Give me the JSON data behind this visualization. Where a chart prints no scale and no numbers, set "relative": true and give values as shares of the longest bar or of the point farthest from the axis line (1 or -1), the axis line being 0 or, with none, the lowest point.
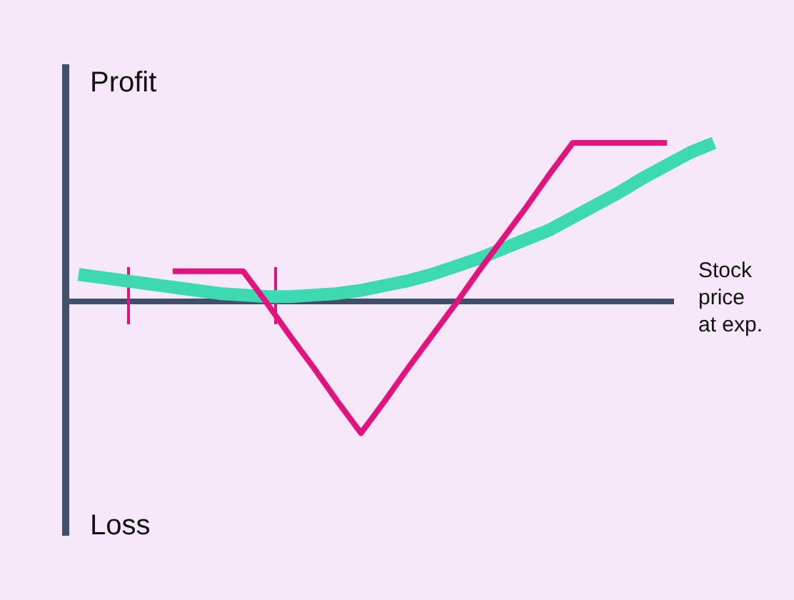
{
  "chart_data": {
    "type": "line",
    "relative": true,
    "xlabel": "Stock price at exp.",
    "annotations": [
      "Profit",
      "Loss"
    ],
    "categories": [
      null,
      null,
      null,
      null,
      null,
      null,
      null,
      null,
      null,
      null,
      null,
      null,
      null,
      null,
      null,
      null,
      null,
      null,
      null,
      null,
      null,
      null,
      null,
      null,
      null,
      null,
      null,
      null
    ],
    "series": [
      {
        "color": "#e0137f",
        "values": [
          null,
          null,
          null,
          null,
          0.19,
          0.19,
          0.19,
          0.19,
          -0.01,
          -0.22,
          -0.42,
          -0.63,
          -0.83,
          -0.63,
          -0.42,
          -0.22,
          -0.02,
          0.19,
          0.39,
          0.59,
          0.8,
          1,
          1,
          1,
          1,
          1,
          null,
          null
        ]
      },
      {
        "color": "#3dd9b0",
        "values": [
          0.17,
          0.15,
          0.13,
          0.11,
          0.09,
          0.07,
          0.05,
          0.04,
          0.03,
          0.03,
          0.04,
          0.05,
          0.07,
          0.1,
          0.13,
          0.17,
          0.22,
          0.27,
          0.33,
          0.39,
          0.45,
          0.53,
          0.61,
          0.69,
          0.78,
          0.86,
          0.94,
          1
        ]
      }
    ],
    "ref_lines": [
      {
        "axis": "y",
        "value": 0,
        "color": "#3f5068"
      }
    ],
    "marker": "none",
    "line_style": "solid"
  }
}
